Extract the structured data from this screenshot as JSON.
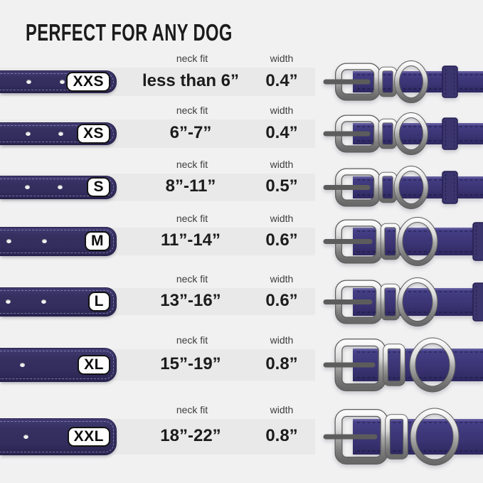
{
  "title": "PERFECT FOR ANY DOG",
  "columns": {
    "neck_fit": "neck fit",
    "width": "width"
  },
  "colors": {
    "background": "#f1f1f2",
    "row_band": "#e9e9e9",
    "strap_dark_navy": "#353060",
    "strap_bright_purple": "#3d3778",
    "metal_silver": "#c9c9c9",
    "badge_background": "#fdfdfd",
    "text_dark": "#1c1c1c",
    "text_muted": "#3d3d3d"
  },
  "rows": [
    {
      "size": "XXS",
      "neck_fit": "less than 6”",
      "width": "0.4”"
    },
    {
      "size": "XS",
      "neck_fit": "6”-7”",
      "width": "0.4”"
    },
    {
      "size": "S",
      "neck_fit": "8”-11”",
      "width": "0.5”"
    },
    {
      "size": "M",
      "neck_fit": "11”-14”",
      "width": "0.6”"
    },
    {
      "size": "L",
      "neck_fit": "13”-16”",
      "width": "0.6”"
    },
    {
      "size": "XL",
      "neck_fit": "15”-19”",
      "width": "0.8”"
    },
    {
      "size": "XXL",
      "neck_fit": "18”-22”",
      "width": "0.8”"
    }
  ]
}
